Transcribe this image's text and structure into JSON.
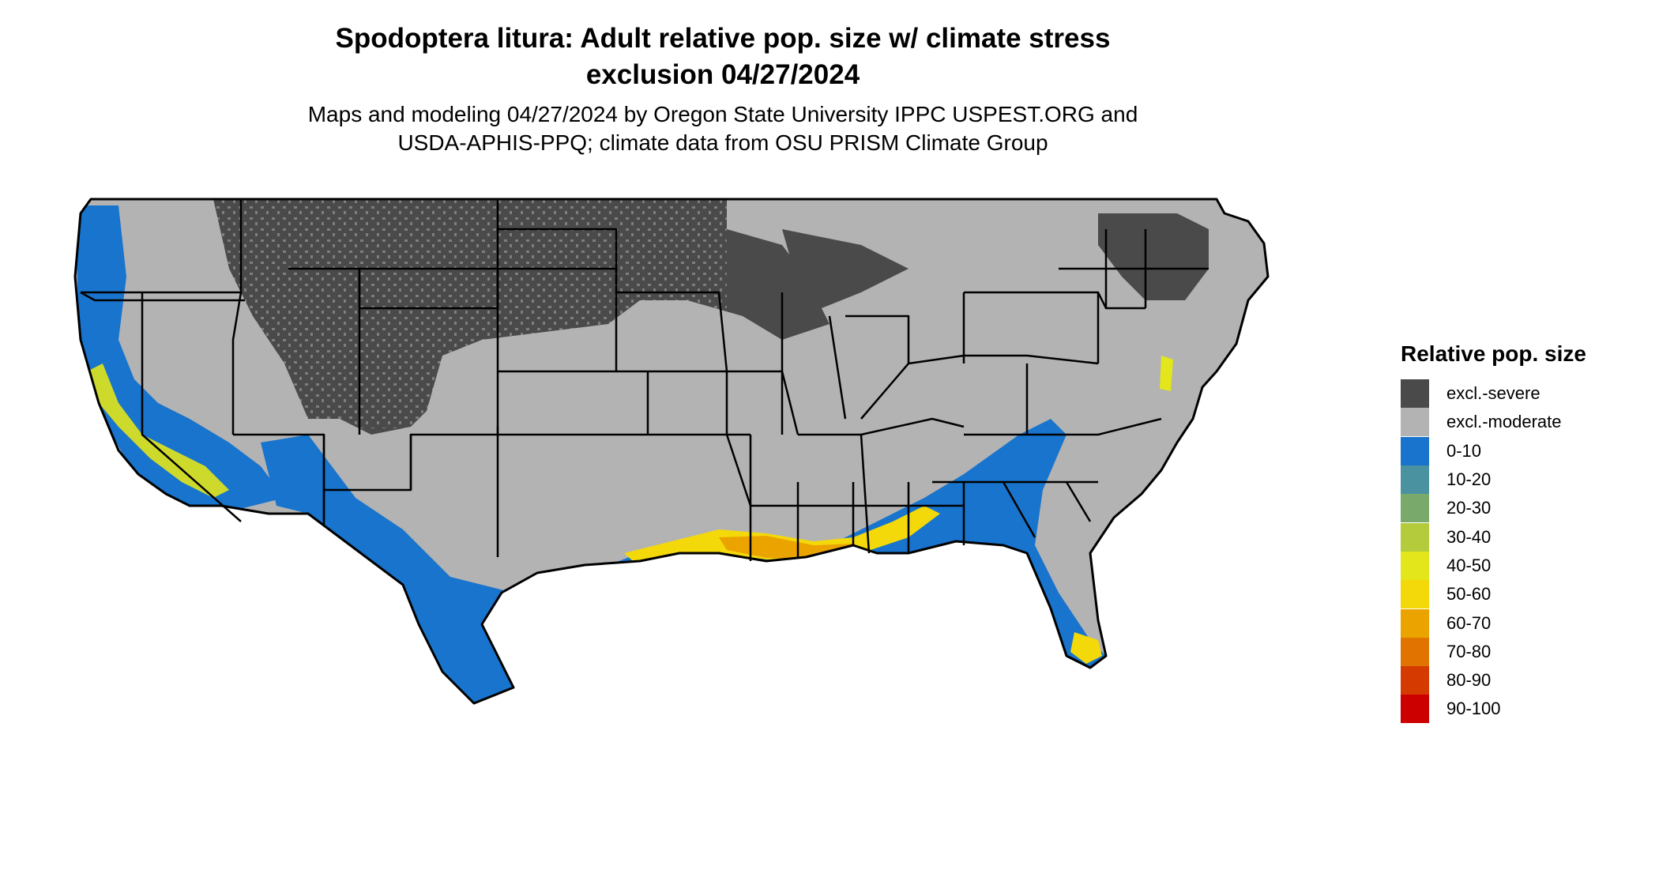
{
  "header": {
    "title_line1": "Spodoptera litura: Adult relative pop. size w/ climate stress",
    "title_line2": "exclusion 04/27/2024",
    "subtitle_line1": "Maps and modeling 04/27/2024 by Oregon State University IPPC USPEST.ORG and",
    "subtitle_line2": "USDA-APHIS-PPQ; climate data from OSU PRISM Climate Group"
  },
  "legend": {
    "title": "Relative pop. size",
    "items": [
      {
        "label": "excl.-severe",
        "color": "#4a4a4a"
      },
      {
        "label": "excl.-moderate",
        "color": "#b3b3b3"
      },
      {
        "label": "0-10",
        "color": "#1874cd"
      },
      {
        "label": "10-20",
        "color": "#4a92a0"
      },
      {
        "label": "20-30",
        "color": "#7aa96c"
      },
      {
        "label": "30-40",
        "color": "#b4cc3c"
      },
      {
        "label": "40-50",
        "color": "#e2e61a"
      },
      {
        "label": "50-60",
        "color": "#f4d90a"
      },
      {
        "label": "60-70",
        "color": "#eba300"
      },
      {
        "label": "70-80",
        "color": "#e17300"
      },
      {
        "label": "80-90",
        "color": "#d53a00"
      },
      {
        "label": "90-100",
        "color": "#cd0000"
      }
    ]
  },
  "map": {
    "region": "Contiguous United States",
    "colors": {
      "background": "#ffffff",
      "excl_severe": "#4a4a4a",
      "excl_moderate": "#b3b3b3",
      "low": "#1874cd",
      "mid": "#e2e61a",
      "high": "#eba300",
      "border": "#000000"
    }
  }
}
